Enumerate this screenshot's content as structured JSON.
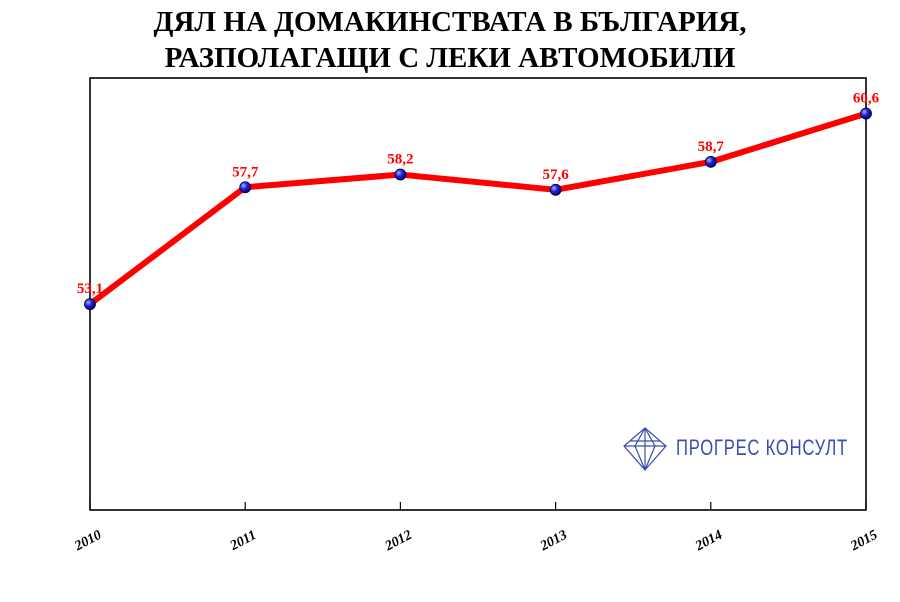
{
  "chart_data": {
    "type": "line",
    "title_line1": "ДЯЛ НА ДОМАКИНСТВАТА В БЪЛГАРИЯ,",
    "title_line2": "РАЗПОЛАГАЩИ С ЛЕКИ АВТОМОБИЛИ",
    "categories": [
      "2010",
      "2011",
      "2012",
      "2013",
      "2014",
      "2015"
    ],
    "series": [
      {
        "values": [
          53.1,
          57.7,
          58.2,
          57.6,
          58.7,
          60.6
        ],
        "labels": [
          "53,1",
          "57,7",
          "58,2",
          "57,6",
          "58,7",
          "60,6"
        ]
      }
    ],
    "ylim": [
      45,
      62
    ],
    "grid": false,
    "line_color": "#ff0000",
    "marker_color": "#1a1acc",
    "label_color": "#ff0000"
  },
  "logo": {
    "text": "ПРОГРЕС КОНСУЛТ",
    "color": "#3a4cb0"
  }
}
